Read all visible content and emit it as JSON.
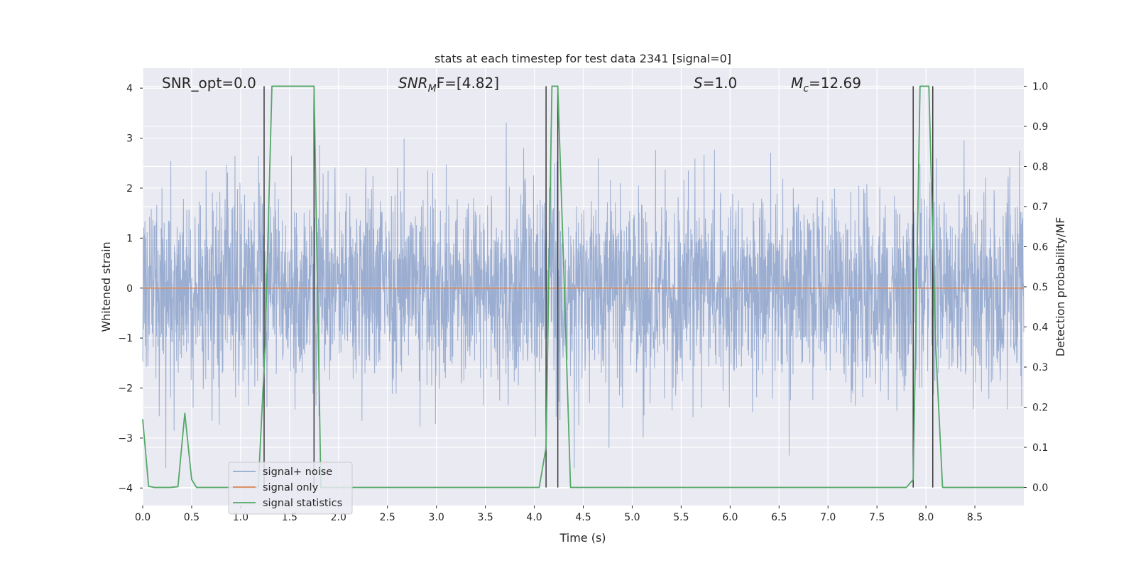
{
  "chart_data": {
    "type": "line",
    "title": "stats at each timestep for test data 2341 [signal=0]",
    "xlabel": "Time (s)",
    "ylabel": "Whitened strain",
    "y2label": "Detection probability/MF",
    "xlim": [
      0.0,
      9.0
    ],
    "ylim": [
      -4.35,
      4.4
    ],
    "y2lim": [
      -0.045,
      1.045
    ],
    "xticks": [
      0.0,
      0.5,
      1.0,
      1.5,
      2.0,
      2.5,
      3.0,
      3.5,
      4.0,
      4.5,
      5.0,
      5.5,
      6.0,
      6.5,
      7.0,
      7.5,
      8.0,
      8.5
    ],
    "xtick_labels": [
      "0.0",
      "0.5",
      "1.0",
      "1.5",
      "2.0",
      "2.5",
      "3.0",
      "3.5",
      "4.0",
      "4.5",
      "5.0",
      "5.5",
      "6.0",
      "6.5",
      "7.0",
      "7.5",
      "8.0",
      "8.5"
    ],
    "yticks": [
      -4,
      -3,
      -2,
      -1,
      0,
      1,
      2,
      3,
      4
    ],
    "ytick_labels": [
      "−4",
      "−3",
      "−2",
      "−1",
      "0",
      "1",
      "2",
      "3",
      "4"
    ],
    "y2ticks": [
      0.0,
      0.1,
      0.2,
      0.3,
      0.4,
      0.5,
      0.6,
      0.7,
      0.8,
      0.9,
      1.0
    ],
    "y2tick_labels": [
      "0.0",
      "0.1",
      "0.2",
      "0.3",
      "0.4",
      "0.5",
      "0.6",
      "0.7",
      "0.8",
      "0.9",
      "1.0"
    ],
    "grid": true,
    "legend_position": "lower-left",
    "annotations": {
      "snr_opt": "SNR_opt=0.0",
      "snr_mf_main": "SNR",
      "snr_mf_sub": "M",
      "snr_mf_rest": "F=[4.82]",
      "s_main": "S",
      "s_rest": "=1.0",
      "mc_main": "M",
      "mc_sub": "c",
      "mc_rest": "=12.69"
    },
    "series": [
      {
        "name": "signal+ noise",
        "color": "#4c72b0",
        "axis": "left",
        "kind": "noise",
        "x_range": [
          0.0,
          9.0
        ],
        "approx_std": 1.0,
        "approx_extremes": [
          -3.6,
          4.0
        ]
      },
      {
        "name": "signal only",
        "color": "#dd8452",
        "axis": "left",
        "x": [
          0.0,
          9.0
        ],
        "y": [
          0.0,
          0.0
        ]
      },
      {
        "name": "signal statistics",
        "color": "#55a868",
        "axis": "right",
        "x": [
          0.0,
          0.06,
          0.12,
          0.2,
          0.28,
          0.36,
          0.43,
          0.5,
          0.55,
          0.62,
          1.18,
          1.25,
          1.32,
          1.75,
          1.82,
          2.0,
          4.05,
          4.12,
          4.18,
          4.24,
          4.3,
          4.37,
          7.8,
          7.87,
          7.94,
          8.03,
          8.1,
          8.17,
          9.0
        ],
        "y": [
          0.17,
          0.003,
          0.0,
          0.0,
          0.0,
          0.002,
          0.185,
          0.02,
          0.0,
          0.0,
          0.0,
          0.35,
          1.0,
          1.0,
          0.0,
          0.0,
          0.0,
          0.1,
          1.0,
          1.0,
          0.55,
          0.0,
          0.0,
          0.02,
          1.0,
          1.0,
          0.35,
          0.0,
          0.0
        ]
      }
    ],
    "vertical_markers_x": [
      1.24,
      1.75,
      4.12,
      4.24,
      7.87,
      8.07
    ]
  }
}
